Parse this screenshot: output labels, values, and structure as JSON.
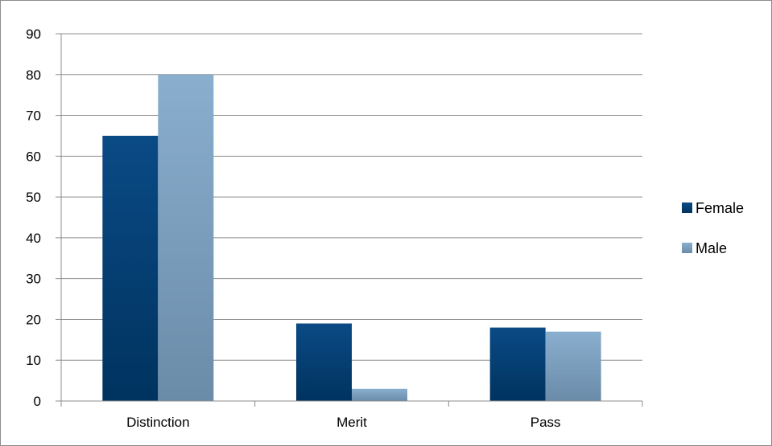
{
  "chart_data": {
    "type": "bar",
    "title": "",
    "xlabel": "",
    "ylabel": "",
    "categories": [
      "Distinction",
      "Merit",
      "Pass"
    ],
    "series": [
      {
        "name": "Female",
        "values": [
          65,
          19,
          18
        ],
        "color": "#0a4a85",
        "color_dark": "#00335f"
      },
      {
        "name": "Male",
        "values": [
          80,
          3,
          17
        ],
        "color": "#8aaece",
        "color_dark": "#6a8ca9"
      }
    ],
    "ylim": [
      0,
      90
    ],
    "yticks": [
      "0",
      "10",
      "20",
      "30",
      "40",
      "50",
      "60",
      "70",
      "80",
      "90"
    ],
    "grid": true,
    "legend_position": "right",
    "colors": {
      "grid": "#8c8c8c",
      "axis": "#8c8c8c",
      "frame": "#8c8c8c"
    }
  }
}
